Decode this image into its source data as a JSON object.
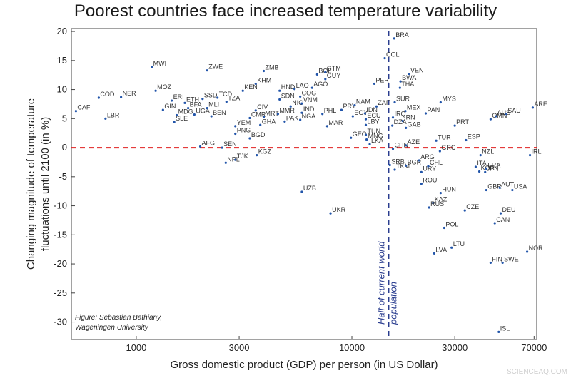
{
  "chart_data": {
    "type": "scatter",
    "title": "Poorest countries face increased temperature variability",
    "xlabel": "Gross domestic product (GDP) per person (in US Dollar)",
    "ylabel_lines": [
      "Changing magnitude of temperature",
      "fluctuations until 2100 (in %)"
    ],
    "x_scale": "log",
    "xlim": [
      500,
      72000
    ],
    "ylim": [
      -33,
      20.5
    ],
    "x_ticks": [
      1000,
      3000,
      10000,
      30000,
      70000
    ],
    "x_tick_labels": [
      "1000",
      "3000",
      "10000",
      "30000",
      "70000"
    ],
    "y_ticks": [
      20,
      15,
      10,
      5,
      0,
      -5,
      -10,
      -15,
      -20,
      -25,
      -30
    ],
    "zero_line": {
      "y": 0,
      "color": "#e02020",
      "style": "dashed"
    },
    "median_line": {
      "x": 14800,
      "color": "#2a3d8f",
      "style": "dashed",
      "label_lines": [
        "Half of current world",
        "population"
      ]
    },
    "annotation_lines": [
      "Figure: Sebastian Bathiany,",
      "Wageningen University"
    ],
    "point_color": "#2255aa",
    "points": [
      {
        "label": "CAF",
        "x": 525,
        "y": 6.3
      },
      {
        "label": "COD",
        "x": 670,
        "y": 8.6
      },
      {
        "label": "LBR",
        "x": 720,
        "y": 5.0
      },
      {
        "label": "NER",
        "x": 850,
        "y": 8.7
      },
      {
        "label": "MWI",
        "x": 1180,
        "y": 13.9
      },
      {
        "label": "MOZ",
        "x": 1230,
        "y": 9.8
      },
      {
        "label": "GIN",
        "x": 1330,
        "y": 6.5
      },
      {
        "label": "ERI",
        "x": 1460,
        "y": 8.1
      },
      {
        "label": "MDG",
        "x": 1540,
        "y": 5.6
      },
      {
        "label": "SLE",
        "x": 1500,
        "y": 4.4
      },
      {
        "label": "ETH",
        "x": 1680,
        "y": 7.7
      },
      {
        "label": "BFA",
        "x": 1740,
        "y": 6.8
      },
      {
        "label": "UGA",
        "x": 1860,
        "y": 5.7
      },
      {
        "label": "SSD",
        "x": 2030,
        "y": 8.4
      },
      {
        "label": "MLI",
        "x": 2130,
        "y": 6.8
      },
      {
        "label": "BEN",
        "x": 2230,
        "y": 5.4
      },
      {
        "label": "ZWE",
        "x": 2130,
        "y": 13.3
      },
      {
        "label": "TCD",
        "x": 2380,
        "y": 8.6
      },
      {
        "label": "AFG",
        "x": 1980,
        "y": 0.2
      },
      {
        "label": "TZA",
        "x": 2620,
        "y": 7.9
      },
      {
        "label": "SEN",
        "x": 2500,
        "y": 0.0
      },
      {
        "label": "NPL",
        "x": 2600,
        "y": -2.6
      },
      {
        "label": "TJK",
        "x": 2880,
        "y": -2.1
      },
      {
        "label": "YEM",
        "x": 2880,
        "y": 3.7
      },
      {
        "label": "PNG",
        "x": 2880,
        "y": 2.4
      },
      {
        "label": "KEN",
        "x": 3120,
        "y": 9.8
      },
      {
        "label": "KHM",
        "x": 3580,
        "y": 11.0
      },
      {
        "label": "CIV",
        "x": 3580,
        "y": 6.4
      },
      {
        "label": "CMR",
        "x": 3360,
        "y": 5.1
      },
      {
        "label": "BGD",
        "x": 3360,
        "y": 1.6
      },
      {
        "label": "KGZ",
        "x": 3620,
        "y": -1.3
      },
      {
        "label": "ZMB",
        "x": 3900,
        "y": 13.2
      },
      {
        "label": "MRT",
        "x": 3900,
        "y": 5.3
      },
      {
        "label": "GHA",
        "x": 3760,
        "y": 3.9
      },
      {
        "label": "HND",
        "x": 4620,
        "y": 9.8
      },
      {
        "label": "SDN",
        "x": 4620,
        "y": 8.3
      },
      {
        "label": "MMR",
        "x": 4540,
        "y": 5.8
      },
      {
        "label": "PAK",
        "x": 4880,
        "y": 4.5
      },
      {
        "label": "NIC",
        "x": 5200,
        "y": 7.1
      },
      {
        "label": "LAO",
        "x": 5420,
        "y": 10.1
      },
      {
        "label": "COG",
        "x": 5760,
        "y": 8.8
      },
      {
        "label": "VNM",
        "x": 5860,
        "y": 7.6
      },
      {
        "label": "IND",
        "x": 5860,
        "y": 6.0
      },
      {
        "label": "NGA",
        "x": 5760,
        "y": 4.8
      },
      {
        "label": "UZB",
        "x": 5860,
        "y": -7.6
      },
      {
        "label": "AGO",
        "x": 6540,
        "y": 10.3
      },
      {
        "label": "BOL",
        "x": 6900,
        "y": 12.6
      },
      {
        "label": "GTM",
        "x": 7530,
        "y": 13.0
      },
      {
        "label": "GUY",
        "x": 7530,
        "y": 11.8
      },
      {
        "label": "PHL",
        "x": 7300,
        "y": 5.8
      },
      {
        "label": "MAR",
        "x": 7680,
        "y": 3.7
      },
      {
        "label": "UKR",
        "x": 7960,
        "y": -11.3
      },
      {
        "label": "PRY",
        "x": 8950,
        "y": 6.5
      },
      {
        "label": "EGY",
        "x": 10100,
        "y": 5.4
      },
      {
        "label": "NAM",
        "x": 10300,
        "y": 7.3
      },
      {
        "label": "IDN",
        "x": 11500,
        "y": 5.9
      },
      {
        "label": "ECU",
        "x": 11600,
        "y": 4.9
      },
      {
        "label": "LBY",
        "x": 11600,
        "y": 3.9
      },
      {
        "label": "ZAF",
        "x": 13000,
        "y": 7.1
      },
      {
        "label": "GEO",
        "x": 9900,
        "y": 1.7
      },
      {
        "label": "TUN",
        "x": 11600,
        "y": 2.2
      },
      {
        "label": "MNG",
        "x": 11700,
        "y": 1.4
      },
      {
        "label": "LKA",
        "x": 12100,
        "y": 0.6
      },
      {
        "label": "PER",
        "x": 12700,
        "y": 11.0
      },
      {
        "label": "COL",
        "x": 14200,
        "y": 15.4
      },
      {
        "label": "BRA",
        "x": 15700,
        "y": 18.8
      },
      {
        "label": "CHN",
        "x": 15500,
        "y": -0.2
      },
      {
        "label": "SRB",
        "x": 15000,
        "y": -3.0
      },
      {
        "label": "TKM",
        "x": 15800,
        "y": -3.8
      },
      {
        "label": "SUR",
        "x": 15800,
        "y": 7.8
      },
      {
        "label": "BWA",
        "x": 16800,
        "y": 11.4
      },
      {
        "label": "THA",
        "x": 16700,
        "y": 10.3
      },
      {
        "label": "VEN",
        "x": 18400,
        "y": 12.7
      },
      {
        "label": "MEX",
        "x": 17700,
        "y": 6.3
      },
      {
        "label": "IRQ",
        "x": 15500,
        "y": 5.2
      },
      {
        "label": "IRN",
        "x": 17200,
        "y": 4.6
      },
      {
        "label": "DZA",
        "x": 15400,
        "y": 3.8
      },
      {
        "label": "GAB",
        "x": 17800,
        "y": 3.4
      },
      {
        "label": "AZE",
        "x": 17800,
        "y": 0.4
      },
      {
        "label": "BGR",
        "x": 17800,
        "y": -3.1
      },
      {
        "label": "ARG",
        "x": 20500,
        "y": -2.2
      },
      {
        "label": "URY",
        "x": 21000,
        "y": -4.2
      },
      {
        "label": "CHL",
        "x": 22600,
        "y": -3.2
      },
      {
        "label": "ROU",
        "x": 21000,
        "y": -6.2
      },
      {
        "label": "PAN",
        "x": 22000,
        "y": 5.9
      },
      {
        "label": "MYS",
        "x": 25800,
        "y": 7.8
      },
      {
        "label": "TUR",
        "x": 24600,
        "y": 1.2
      },
      {
        "label": "GRC",
        "x": 25600,
        "y": -0.6
      },
      {
        "label": "HUN",
        "x": 25800,
        "y": -7.8
      },
      {
        "label": "KAZ",
        "x": 23800,
        "y": -9.5
      },
      {
        "label": "RUS",
        "x": 22800,
        "y": -10.3
      },
      {
        "label": "LVA",
        "x": 24100,
        "y": -18.2
      },
      {
        "label": "POL",
        "x": 26800,
        "y": -13.8
      },
      {
        "label": "LTU",
        "x": 29000,
        "y": -17.2
      },
      {
        "label": "PRT",
        "x": 30000,
        "y": 3.8
      },
      {
        "label": "ESP",
        "x": 33800,
        "y": 1.3
      },
      {
        "label": "CZE",
        "x": 33400,
        "y": -10.8
      },
      {
        "label": "NZL",
        "x": 39500,
        "y": -1.3
      },
      {
        "label": "ITA",
        "x": 37500,
        "y": -3.3
      },
      {
        "label": "KOR",
        "x": 39000,
        "y": -4.1
      },
      {
        "label": "FRA",
        "x": 42000,
        "y": -3.6
      },
      {
        "label": "JPN",
        "x": 41500,
        "y": -4.2
      },
      {
        "label": "GBR",
        "x": 42000,
        "y": -7.3
      },
      {
        "label": "AUT",
        "x": 48500,
        "y": -6.9
      },
      {
        "label": "USA",
        "x": 55500,
        "y": -7.3
      },
      {
        "label": "FIN",
        "x": 44000,
        "y": -19.8
      },
      {
        "label": "SWE",
        "x": 50000,
        "y": -19.8
      },
      {
        "label": "CAN",
        "x": 46000,
        "y": -13.0
      },
      {
        "label": "DEU",
        "x": 49000,
        "y": -11.3
      },
      {
        "label": "OMN",
        "x": 44000,
        "y": 4.9
      },
      {
        "label": "AUS",
        "x": 46500,
        "y": 5.4
      },
      {
        "label": "SAU",
        "x": 52000,
        "y": 5.8
      },
      {
        "label": "ARE",
        "x": 69000,
        "y": 6.9
      },
      {
        "label": "IRL",
        "x": 67000,
        "y": -1.3
      },
      {
        "label": "NOR",
        "x": 65000,
        "y": -17.9
      },
      {
        "label": "ISL",
        "x": 48000,
        "y": -31.7
      }
    ]
  },
  "watermark": "SCIENCEAQ.COM"
}
